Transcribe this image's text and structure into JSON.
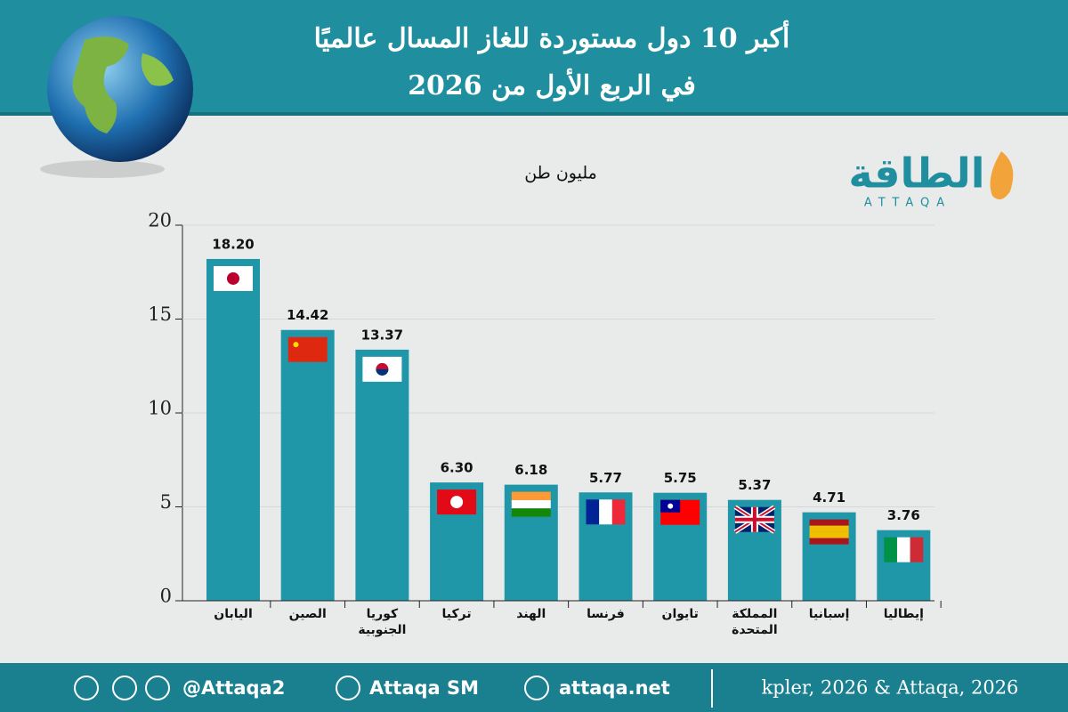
{
  "chart_data": {
    "type": "bar",
    "title": "أكبر 10 دول مستوردة للغاز المسال عالميًا",
    "subtitle": "في الربع الأول من 2026",
    "y_label": "مليون طن",
    "categories": [
      "اليابان",
      "الصين",
      "كوريا الجنوبية",
      "تركيا",
      "الهند",
      "فرنسا",
      "تايوان",
      "المملكة المتحدة",
      "إسبانيا",
      "إيطاليا"
    ],
    "values": [
      18.2,
      14.42,
      13.37,
      6.3,
      6.18,
      5.77,
      5.75,
      5.37,
      4.71,
      3.76
    ],
    "value_labels": [
      "18.20",
      "14.42",
      "13.37",
      "6.30",
      "6.18",
      "5.77",
      "5.75",
      "5.37",
      "4.71",
      "3.76"
    ],
    "color": "#2097a8",
    "ylim": [
      0,
      20
    ],
    "yticks": [
      0,
      5,
      10,
      15,
      20
    ],
    "grid": true
  },
  "logo": {
    "text": "الطاقة",
    "latin": "ATTAQA"
  },
  "footer": {
    "handle": "@Attaqa2",
    "youtube": "Attaqa SM",
    "site": "attaqa.net",
    "source": "kpler, 2026 & Attaqa, 2026"
  }
}
